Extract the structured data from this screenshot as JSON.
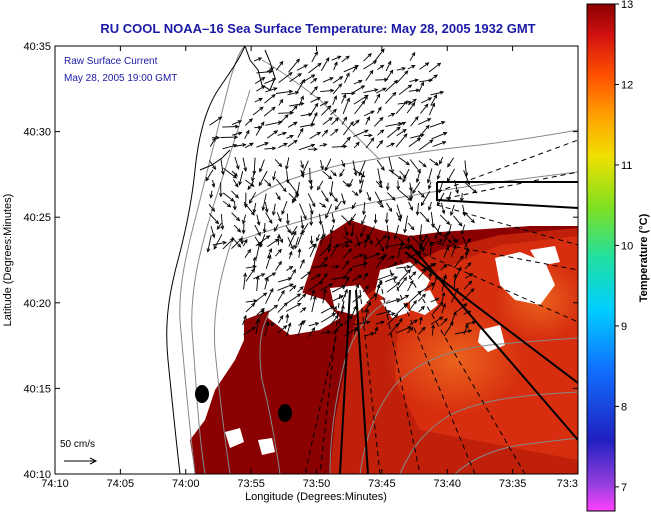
{
  "title": "RU COOL  NOAA–16  Sea Surface Temperature:  May 28, 2005 1932 GMT",
  "annotation": {
    "line1": "Raw Surface Current",
    "line2": "May 28, 2005 19:00 GMT"
  },
  "scale_bar": {
    "label": "50 cm/s"
  },
  "axes": {
    "xlabel": "Longitude (Degrees:Minutes)",
    "ylabel": "Latitude (Degrees:Minutes)",
    "x_ticks": [
      "74:10",
      "74:05",
      "74:00",
      "73:55",
      "73:50",
      "73:45",
      "73:40",
      "73:35",
      "73:3"
    ],
    "y_ticks": [
      "40:35",
      "40:30",
      "40:25",
      "40:20",
      "40:15",
      "40:10"
    ]
  },
  "colorbar": {
    "label": "Temperature (°C)",
    "ticks": [
      "13",
      "12",
      "11",
      "10",
      "9",
      "8",
      "7"
    ],
    "range": [
      6.7,
      13
    ]
  },
  "colors": {
    "title": "#1a1aa6",
    "sst_dark": "#8b0000",
    "sst_mid": "#c0200a",
    "sst_warm": "#e04a10"
  }
}
